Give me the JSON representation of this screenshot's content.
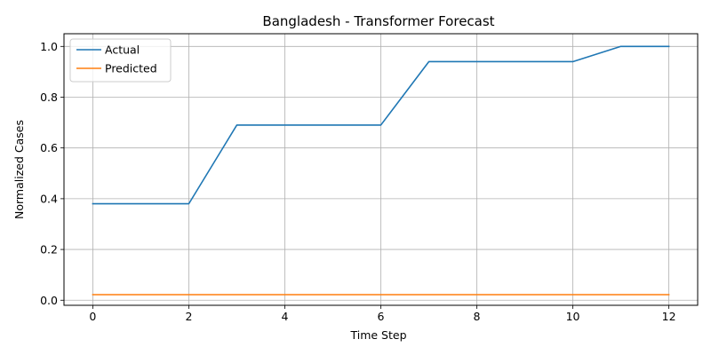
{
  "chart_data": {
    "type": "line",
    "title": "Bangladesh - Transformer Forecast",
    "xlabel": "Time Step",
    "ylabel": "Normalized Cases",
    "x": [
      0,
      1,
      2,
      3,
      4,
      5,
      6,
      7,
      8,
      9,
      10,
      11,
      12
    ],
    "xlim": [
      -0.6,
      12.6
    ],
    "ylim": [
      -0.02,
      1.05
    ],
    "xticks": [
      0,
      2,
      4,
      6,
      8,
      10,
      12
    ],
    "yticks": [
      0.0,
      0.2,
      0.4,
      0.6,
      0.8,
      1.0
    ],
    "xtick_labels": [
      "0",
      "2",
      "4",
      "6",
      "8",
      "10",
      "12"
    ],
    "ytick_labels": [
      "0.0",
      "0.2",
      "0.4",
      "0.6",
      "0.8",
      "1.0"
    ],
    "grid": true,
    "legend_position": "top-left",
    "series": [
      {
        "name": "Actual",
        "color": "#1f77b4",
        "values": [
          0.38,
          0.38,
          0.38,
          0.69,
          0.69,
          0.69,
          0.69,
          0.94,
          0.94,
          0.94,
          0.94,
          1.0,
          1.0
        ]
      },
      {
        "name": "Predicted",
        "color": "#ff7f0e",
        "values": [
          0.022,
          0.022,
          0.022,
          0.022,
          0.022,
          0.022,
          0.022,
          0.022,
          0.022,
          0.022,
          0.022,
          0.022,
          0.022
        ]
      }
    ]
  }
}
